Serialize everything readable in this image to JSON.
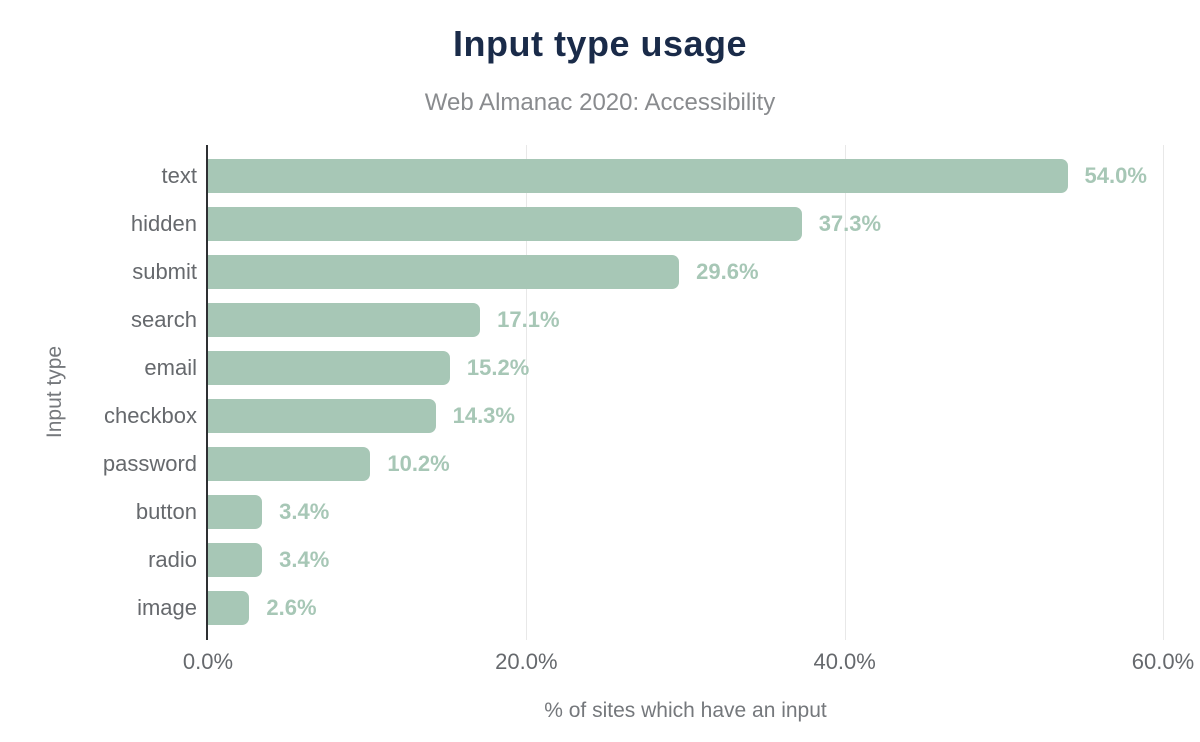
{
  "header": {
    "title": "Input type usage",
    "subtitle": "Web Almanac 2020: Accessibility"
  },
  "chart_data": {
    "type": "bar",
    "orientation": "horizontal",
    "title": "Input type usage",
    "subtitle": "Web Almanac 2020: Accessibility",
    "categories": [
      "text",
      "hidden",
      "submit",
      "search",
      "email",
      "checkbox",
      "password",
      "button",
      "radio",
      "image"
    ],
    "values": [
      54.0,
      37.3,
      29.6,
      17.1,
      15.2,
      14.3,
      10.2,
      3.4,
      3.4,
      2.6
    ],
    "value_labels": [
      "54.0%",
      "37.3%",
      "29.6%",
      "17.1%",
      "15.2%",
      "14.3%",
      "10.2%",
      "3.4%",
      "3.4%",
      "2.6%"
    ],
    "xlabel": "% of sites which have an input",
    "ylabel": "Input type",
    "xlim": [
      0,
      60
    ],
    "xticks": [
      0,
      20,
      40,
      60
    ],
    "xtick_labels": [
      "0.0%",
      "20.0%",
      "40.0%",
      "60.0%"
    ],
    "grid": "vertical-gridlines-at-ticks",
    "legend": "none",
    "colors": {
      "bar": "#a7c7b6",
      "value_label": "#a7c7b6",
      "title": "#1a2b49",
      "subtitle": "#898b8e",
      "axis_text": "#66696d",
      "axis_title_text": "#75787c",
      "axis_line": "#2e3033",
      "gridline": "#e8e8e8",
      "background": "#ffffff"
    }
  }
}
